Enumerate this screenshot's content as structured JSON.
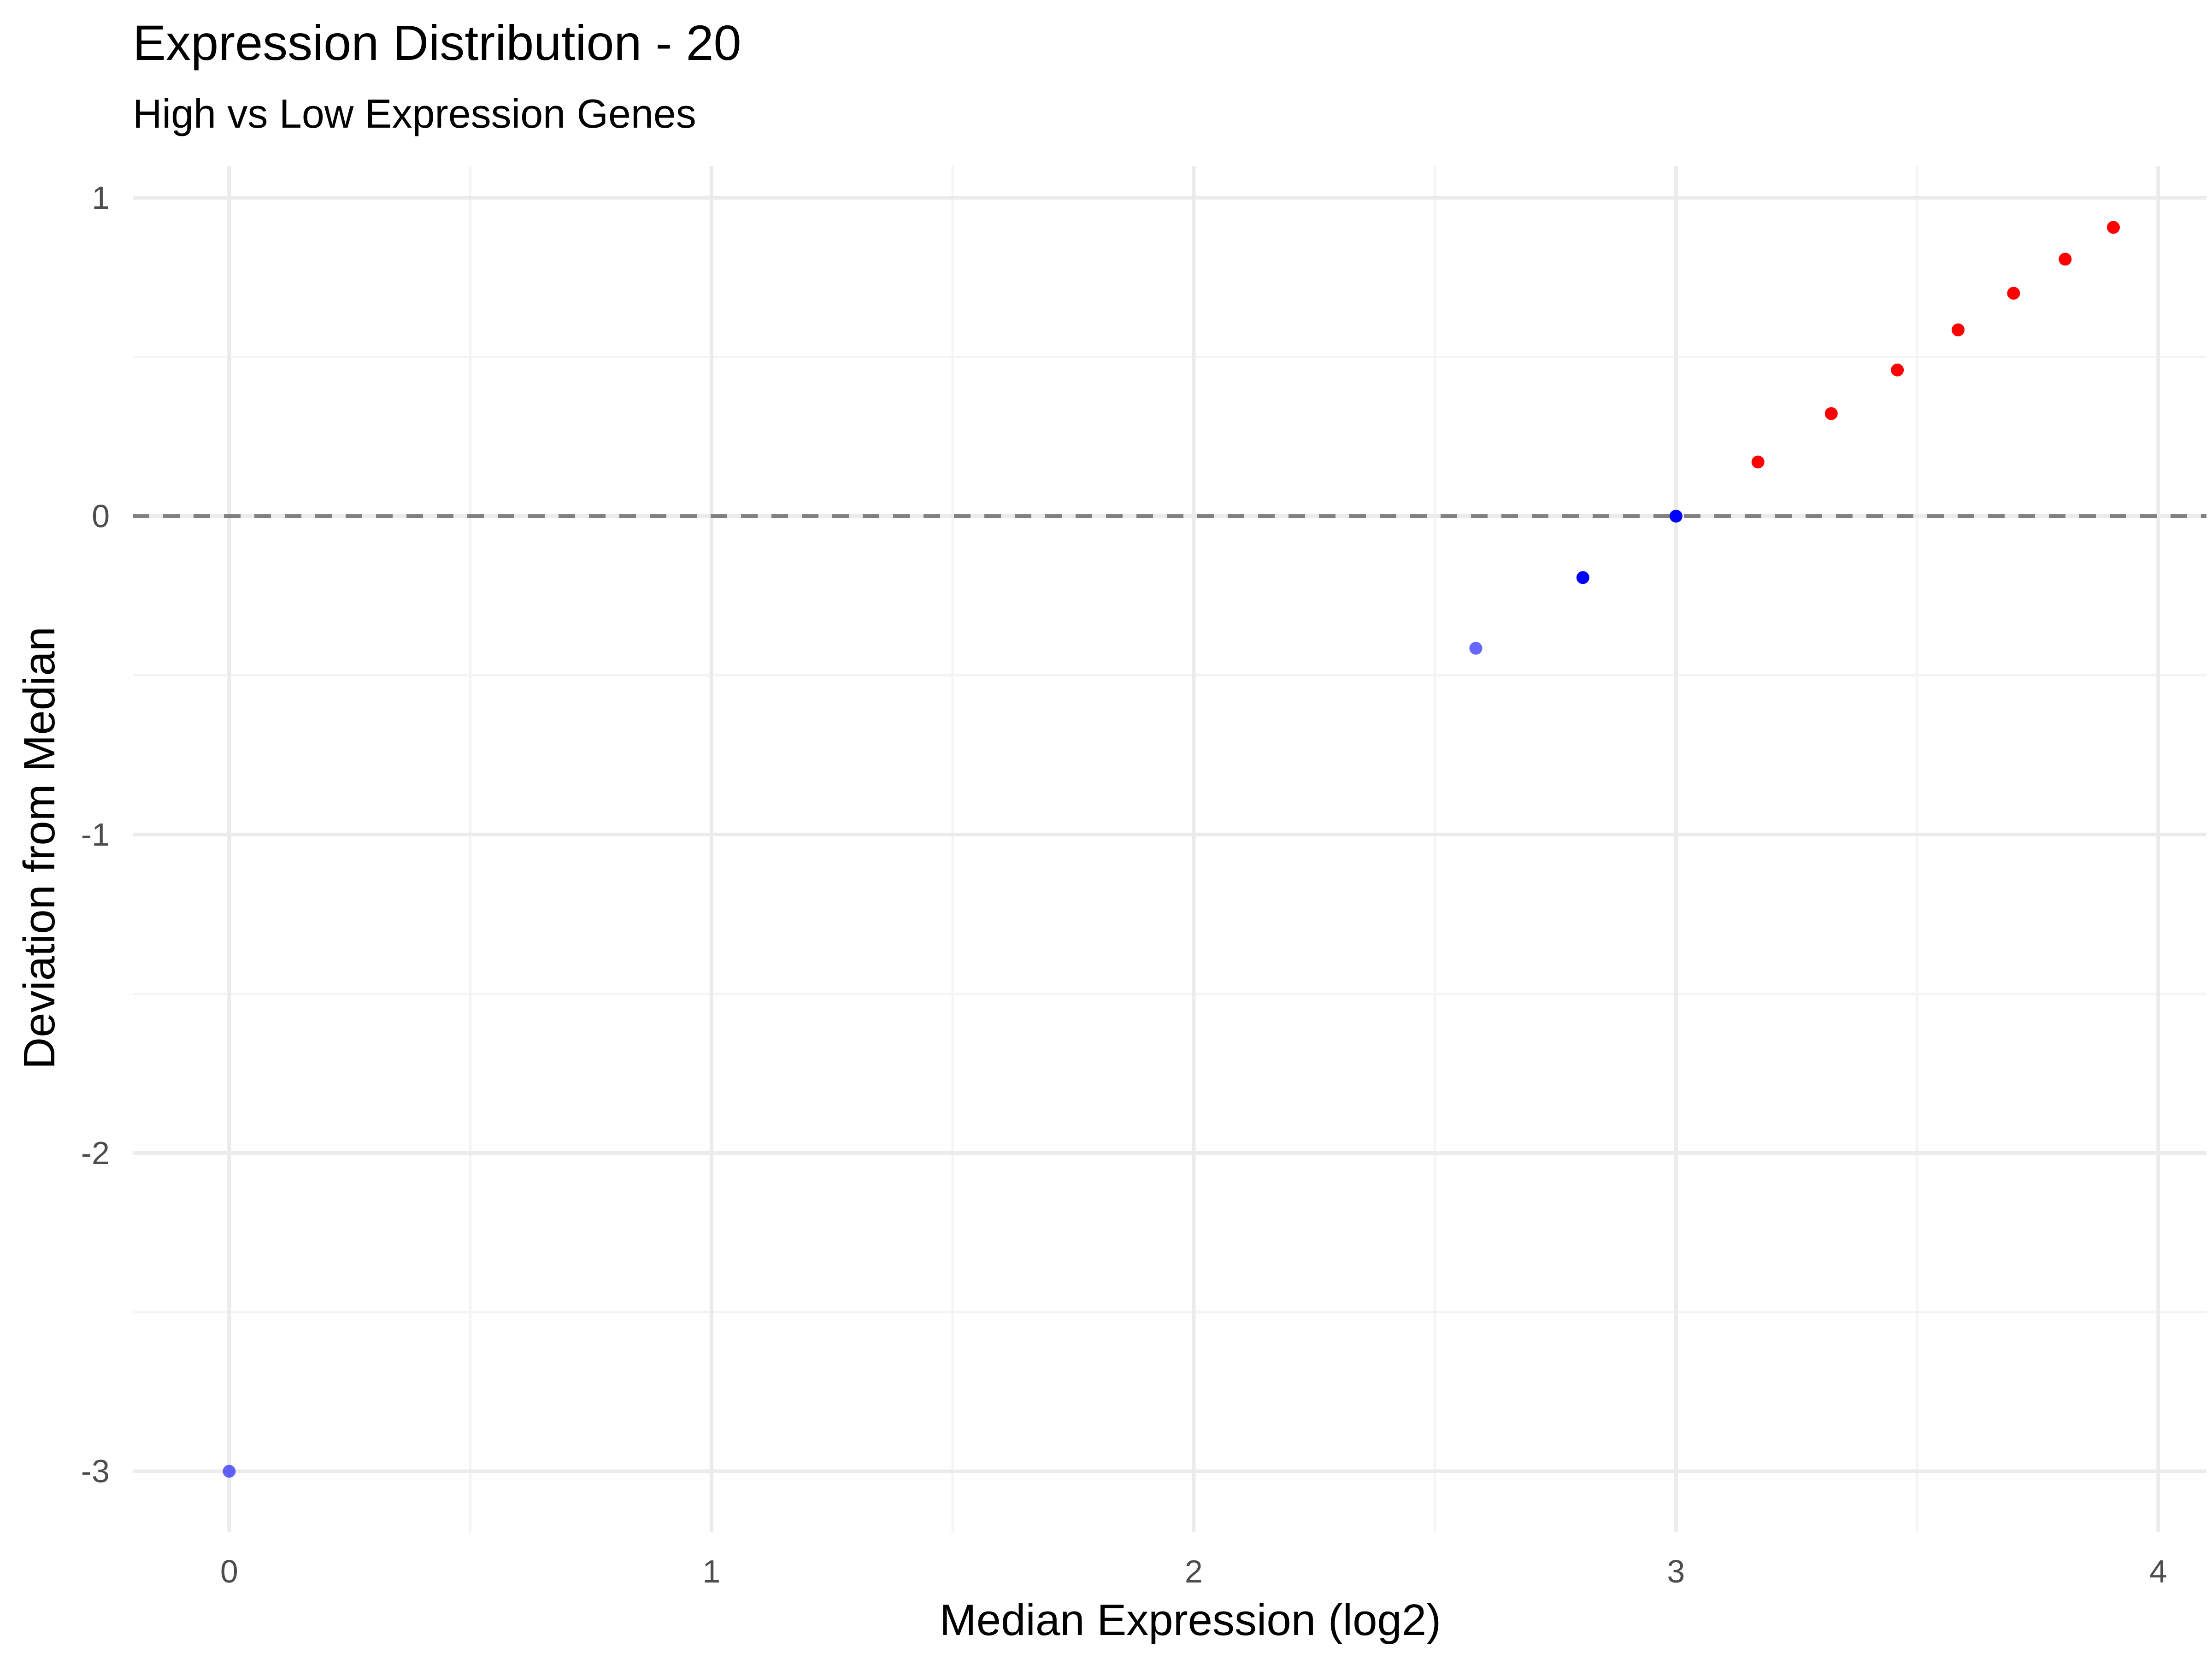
{
  "chart_data": {
    "type": "scatter",
    "title": "Expression Distribution - 20",
    "subtitle": "High vs Low Expression Genes",
    "xlabel": "Median Expression (log2)",
    "ylabel": "Deviation from Median",
    "xlim": [
      -0.2,
      4.1
    ],
    "ylim": [
      -3.19,
      1.1
    ],
    "x_ticks": [
      0,
      1,
      2,
      3,
      4
    ],
    "y_ticks": [
      -3,
      -2,
      -1,
      0,
      1
    ],
    "x_tick_labels": [
      "0",
      "1",
      "2",
      "3",
      "4"
    ],
    "y_tick_labels": [
      "-3",
      "-2",
      "-1",
      "0",
      "1"
    ],
    "x_minor_ticks": [
      0.5,
      1.5,
      2.5,
      3.5
    ],
    "y_minor_ticks": [
      -2.5,
      -1.5,
      -0.5,
      0.5
    ],
    "grid": true,
    "reference_line": {
      "y": 0,
      "style": "dashed",
      "color": "#808080"
    },
    "colors": {
      "low": "#0000ff",
      "high": "#ff0000",
      "grid_major": "#ebebeb",
      "grid_minor": "#f4f4f4",
      "tick_label": "#4d4d4d"
    },
    "series": [
      {
        "group": "low",
        "color": "#0000ff",
        "points": [
          {
            "x": 0,
            "y": -3,
            "alpha": 0.6
          },
          {
            "x": 2.585,
            "y": -0.415,
            "alpha": 0.6
          },
          {
            "x": 2.807,
            "y": -0.193,
            "alpha": 1.0
          },
          {
            "x": 3.0,
            "y": 0.0,
            "alpha": 1.0
          }
        ]
      },
      {
        "group": "high",
        "color": "#ff0000",
        "points": [
          {
            "x": 3.17,
            "y": 0.17,
            "alpha": 1.0
          },
          {
            "x": 3.322,
            "y": 0.322,
            "alpha": 1.0
          },
          {
            "x": 3.459,
            "y": 0.459,
            "alpha": 1.0
          },
          {
            "x": 3.585,
            "y": 0.585,
            "alpha": 1.0
          },
          {
            "x": 3.7,
            "y": 0.7,
            "alpha": 1.0
          },
          {
            "x": 3.807,
            "y": 0.807,
            "alpha": 1.0
          },
          {
            "x": 3.907,
            "y": 0.907,
            "alpha": 1.0
          }
        ]
      }
    ]
  }
}
